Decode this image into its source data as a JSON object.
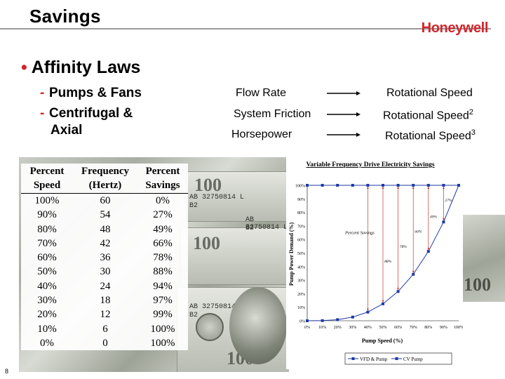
{
  "slide": {
    "title": "Savings",
    "logo": "Honeywell",
    "bullet": "Affinity Laws",
    "subbullets": [
      "Pumps & Fans",
      "Centrifugal &",
      "Axial"
    ],
    "page_number": "8"
  },
  "relations": [
    {
      "left": "Flow Rate",
      "right": "Rotational Speed",
      "exp": ""
    },
    {
      "left": "System Friction",
      "right": "Rotational Speed",
      "exp": "2"
    },
    {
      "left": "Horsepower",
      "right": "Rotational Speed",
      "exp": "3"
    }
  ],
  "money_text": {
    "serial": "AB 32750814 L",
    "series": "B2",
    "denomination": "100"
  },
  "table": {
    "headers": [
      [
        "Percent",
        "Speed"
      ],
      [
        "Frequency",
        "(Hertz)"
      ],
      [
        "Percent",
        "Savings"
      ]
    ],
    "rows": [
      [
        "100%",
        "60",
        "0%"
      ],
      [
        "90%",
        "54",
        "27%"
      ],
      [
        "80%",
        "48",
        "49%"
      ],
      [
        "70%",
        "42",
        "66%"
      ],
      [
        "60%",
        "36",
        "78%"
      ],
      [
        "50%",
        "30",
        "88%"
      ],
      [
        "40%",
        "24",
        "94%"
      ],
      [
        "30%",
        "18",
        "97%"
      ],
      [
        "20%",
        "12",
        "99%"
      ],
      [
        "10%",
        "6",
        "100%"
      ],
      [
        "0%",
        "0",
        "100%"
      ]
    ]
  },
  "chart_data": {
    "type": "line",
    "title": "Variable Frequency Drive Electricity Savings",
    "xlabel": "Pump Speed (%)",
    "ylabel": "Pump Power Demand (%)",
    "x": [
      0,
      10,
      20,
      30,
      40,
      50,
      60,
      70,
      80,
      90,
      100
    ],
    "x_tick_labels": [
      "0%",
      "10%",
      "20%",
      "30%",
      "40%",
      "50%",
      "60%",
      "70%",
      "80%",
      "90%",
      "100%"
    ],
    "y_tick_labels": [
      "0%",
      "10%",
      "20%",
      "30%",
      "40%",
      "50%",
      "60%",
      "70%",
      "80%",
      "90%",
      "100%"
    ],
    "xlim": [
      0,
      100
    ],
    "ylim": [
      0,
      100
    ],
    "series": [
      {
        "name": "VFD & Pump",
        "color": "#1f3aa5",
        "values": [
          0,
          0.1,
          0.8,
          2.7,
          6.4,
          12.5,
          21.6,
          34.3,
          51.2,
          72.9,
          100
        ]
      },
      {
        "name": "CV Pump",
        "color": "#1f3aa5",
        "values": [
          100,
          100,
          100,
          100,
          100,
          100,
          100,
          100,
          100,
          100,
          100
        ]
      }
    ],
    "annotations": [
      "Percent Savings",
      "27%",
      "49%",
      "66%",
      "78%",
      "88%"
    ],
    "annotation_color": "#c0392b",
    "legend_position": "bottom"
  }
}
